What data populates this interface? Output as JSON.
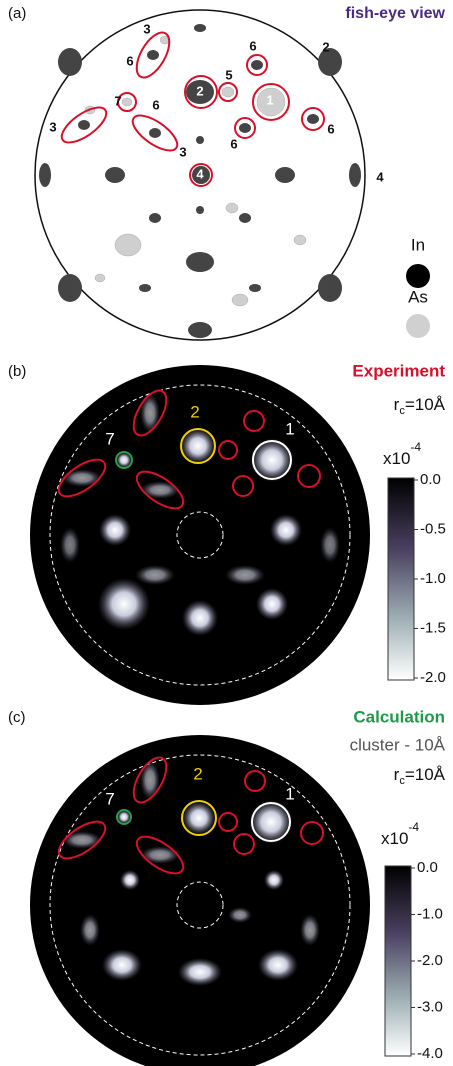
{
  "panels": {
    "a": {
      "letter": "(a)",
      "title": "fish-eye view",
      "labels": [
        "3",
        "6",
        "7",
        "6",
        "3",
        "3",
        "2",
        "5",
        "6",
        "1",
        "6",
        "6",
        "4",
        "2",
        "4"
      ],
      "legend": [
        "In",
        "As"
      ]
    },
    "b": {
      "letter": "(b)",
      "title": "Experiment",
      "rc": {
        "base": "r",
        "sub": "c",
        "rest": "=10Å"
      },
      "scale": {
        "base": "x10",
        "exp": "-4"
      },
      "ticks": [
        "0.0",
        "-0.5",
        "-1.0",
        "-1.5",
        "-2.0"
      ],
      "labels": [
        "7",
        "2",
        "1"
      ]
    },
    "c": {
      "letter": "(c)",
      "title": "Calculation",
      "subtitle": "cluster - 10Å",
      "rc": {
        "base": "r",
        "sub": "c",
        "rest": "=10Å"
      },
      "scale": {
        "base": "x10",
        "exp": "-4"
      },
      "ticks": [
        "0.0",
        "-1.0",
        "-2.0",
        "-3.0",
        "-4.0"
      ],
      "labels": [
        "7",
        "2",
        "1"
      ]
    }
  }
}
